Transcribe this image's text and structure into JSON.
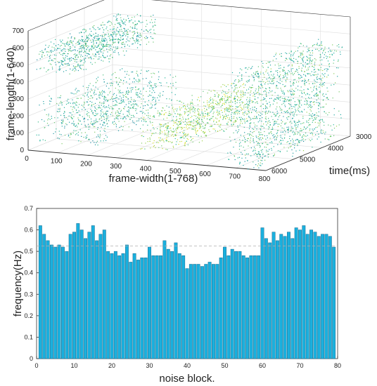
{
  "colors": {
    "bar_fill": "#1ab0de",
    "bar_edge": "#1d6d8f",
    "axis": "#333333",
    "grid": "#dddddd",
    "ref_line": "#b0b0b0",
    "scatter_low": "#1f5fa8",
    "scatter_mid": "#1fb6a0",
    "scatter_high": "#e8e21c"
  },
  "chart_data": [
    {
      "type": "scatter",
      "projection": "3d",
      "title": "",
      "xlabel": "frame-width(1-768)",
      "ylabel": "frame-length(1-640)",
      "zlabel": "time(ms)",
      "x_ticks": [
        "0",
        "100",
        "200",
        "300",
        "400",
        "500",
        "600",
        "700",
        "800"
      ],
      "y_ticks": [
        "0",
        "100",
        "200",
        "300",
        "400",
        "500",
        "600",
        "700"
      ],
      "time_ticks": [
        "3000",
        "4000",
        "5000",
        "6000"
      ],
      "grid": true,
      "clusters": [
        {
          "x": [
            20,
            160
          ],
          "y": [
            460,
            620
          ],
          "time": [
            3000,
            6000
          ]
        },
        {
          "x": [
            20,
            230
          ],
          "y": [
            50,
            300
          ],
          "time": [
            3000,
            6000
          ]
        },
        {
          "x": [
            370,
            500
          ],
          "y": [
            60,
            260
          ],
          "time": [
            3000,
            6000
          ]
        },
        {
          "x": [
            660,
            780
          ],
          "y": [
            0,
            560
          ],
          "time": [
            3000,
            6000
          ]
        }
      ]
    },
    {
      "type": "bar",
      "title": "",
      "xlabel": "noise block.",
      "ylabel": "frequency(Hz)",
      "x_ticks": [
        "0",
        "10",
        "20",
        "30",
        "40",
        "50",
        "60",
        "70",
        "80"
      ],
      "y_ticks": [
        "0",
        "0.1",
        "0.2",
        "0.3",
        "0.4",
        "0.5",
        "0.6",
        "0.7"
      ],
      "xlim": [
        0,
        80
      ],
      "ylim": [
        0,
        0.7
      ],
      "reference_line": 0.525,
      "categories": [
        1,
        2,
        3,
        4,
        5,
        6,
        7,
        8,
        9,
        10,
        11,
        12,
        13,
        14,
        15,
        16,
        17,
        18,
        19,
        20,
        21,
        22,
        23,
        24,
        25,
        26,
        27,
        28,
        29,
        30,
        31,
        32,
        33,
        34,
        35,
        36,
        37,
        38,
        39,
        40,
        41,
        42,
        43,
        44,
        45,
        46,
        47,
        48,
        49,
        50,
        51,
        52,
        53,
        54,
        55,
        56,
        57,
        58,
        59,
        60,
        61,
        62,
        63,
        64,
        65,
        66,
        67,
        68,
        69,
        70,
        71,
        72,
        73,
        74,
        75,
        76,
        77,
        78,
        79
      ],
      "values": [
        0.62,
        0.58,
        0.55,
        0.53,
        0.52,
        0.53,
        0.52,
        0.5,
        0.58,
        0.59,
        0.63,
        0.6,
        0.56,
        0.59,
        0.62,
        0.55,
        0.58,
        0.6,
        0.5,
        0.49,
        0.5,
        0.48,
        0.49,
        0.53,
        0.45,
        0.49,
        0.46,
        0.47,
        0.47,
        0.52,
        0.48,
        0.48,
        0.48,
        0.55,
        0.51,
        0.5,
        0.54,
        0.49,
        0.48,
        0.42,
        0.44,
        0.44,
        0.44,
        0.43,
        0.44,
        0.45,
        0.44,
        0.44,
        0.47,
        0.52,
        0.48,
        0.51,
        0.5,
        0.5,
        0.48,
        0.47,
        0.48,
        0.48,
        0.48,
        0.61,
        0.56,
        0.54,
        0.59,
        0.55,
        0.58,
        0.57,
        0.59,
        0.56,
        0.61,
        0.6,
        0.62,
        0.58,
        0.6,
        0.59,
        0.57,
        0.58,
        0.58,
        0.57,
        0.52
      ]
    }
  ]
}
